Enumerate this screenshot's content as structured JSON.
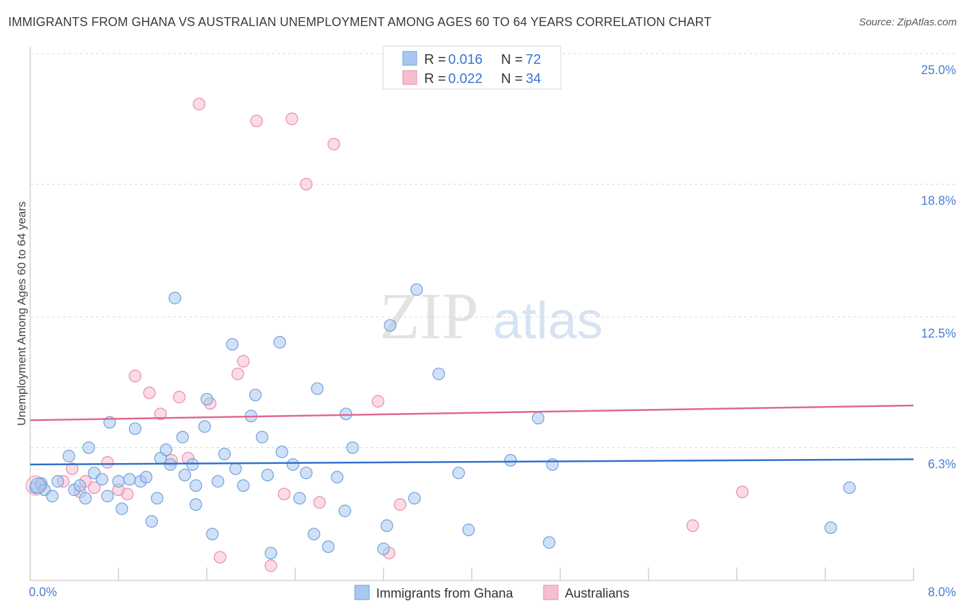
{
  "title": "IMMIGRANTS FROM GHANA VS AUSTRALIAN UNEMPLOYMENT AMONG AGES 60 TO 64 YEARS CORRELATION CHART",
  "source": "Source: ZipAtlas.com",
  "watermark": {
    "zip": "ZIP",
    "atlas": "atlas"
  },
  "colors": {
    "blue_fill": "#a9c8f0",
    "blue_stroke": "#6f9fdc",
    "blue_line": "#2e6fcf",
    "pink_fill": "#f6bfd0",
    "pink_stroke": "#e98aaa",
    "pink_line": "#e06690",
    "grid": "#d9d9d9",
    "tick_label": "#4a7fd0"
  },
  "legend": {
    "rows": [
      {
        "r_label": "R = ",
        "r_value": "0.016",
        "n_label": "N = ",
        "n_value": "72"
      },
      {
        "r_label": "R = ",
        "r_value": "0.022",
        "n_label": "N = ",
        "n_value": "34"
      }
    ]
  },
  "chart_data": {
    "type": "scatter",
    "title": "IMMIGRANTS FROM GHANA VS AUSTRALIAN UNEMPLOYMENT AMONG AGES 60 TO 64 YEARS CORRELATION CHART",
    "xlabel": "",
    "ylabel": "Unemployment Among Ages 60 to 64 years",
    "xlim": [
      0,
      8.0
    ],
    "ylim": [
      0,
      25.0
    ],
    "x_tick_labels": [
      "0.0%",
      "8.0%"
    ],
    "y_ticks": [
      6.3,
      12.5,
      18.8,
      25.0
    ],
    "y_tick_labels": [
      "6.3%",
      "12.5%",
      "18.8%",
      "25.0%"
    ],
    "grid": true,
    "legend_position": "top-center",
    "series": [
      {
        "name": "Immigrants from Ghana",
        "color": "blue",
        "trend": {
          "x": [
            0.0,
            8.0
          ],
          "y": [
            5.5,
            5.75
          ]
        },
        "points": [
          [
            0.05,
            4.4
          ],
          [
            0.1,
            4.6
          ],
          [
            0.13,
            4.3
          ],
          [
            0.2,
            4.0
          ],
          [
            0.25,
            4.7
          ],
          [
            0.35,
            5.9
          ],
          [
            0.4,
            4.3
          ],
          [
            0.45,
            4.5
          ],
          [
            0.5,
            3.9
          ],
          [
            0.53,
            6.3
          ],
          [
            0.58,
            5.1
          ],
          [
            0.65,
            4.8
          ],
          [
            0.7,
            4.0
          ],
          [
            0.72,
            7.5
          ],
          [
            0.8,
            4.7
          ],
          [
            0.83,
            3.4
          ],
          [
            0.9,
            4.8
          ],
          [
            0.95,
            7.2
          ],
          [
            1.0,
            4.7
          ],
          [
            1.05,
            4.9
          ],
          [
            1.1,
            2.8
          ],
          [
            1.15,
            3.9
          ],
          [
            1.18,
            5.8
          ],
          [
            1.23,
            6.2
          ],
          [
            1.27,
            5.5
          ],
          [
            1.31,
            13.4
          ],
          [
            1.38,
            6.8
          ],
          [
            1.4,
            5.0
          ],
          [
            1.47,
            5.5
          ],
          [
            1.5,
            3.6
          ],
          [
            1.5,
            4.5
          ],
          [
            1.58,
            7.3
          ],
          [
            1.6,
            8.6
          ],
          [
            1.65,
            2.2
          ],
          [
            1.7,
            4.7
          ],
          [
            1.76,
            6.0
          ],
          [
            1.83,
            11.2
          ],
          [
            1.86,
            5.3
          ],
          [
            1.93,
            4.5
          ],
          [
            2.0,
            7.8
          ],
          [
            2.04,
            8.8
          ],
          [
            2.1,
            6.8
          ],
          [
            2.15,
            5.0
          ],
          [
            2.18,
            1.3
          ],
          [
            2.26,
            11.3
          ],
          [
            2.28,
            6.1
          ],
          [
            2.38,
            5.5
          ],
          [
            2.44,
            3.9
          ],
          [
            2.5,
            5.1
          ],
          [
            2.57,
            2.2
          ],
          [
            2.6,
            9.1
          ],
          [
            2.7,
            1.6
          ],
          [
            2.78,
            4.9
          ],
          [
            2.85,
            3.3
          ],
          [
            2.86,
            7.9
          ],
          [
            2.92,
            6.3
          ],
          [
            3.2,
            1.5
          ],
          [
            3.23,
            2.6
          ],
          [
            3.26,
            12.1
          ],
          [
            3.48,
            3.9
          ],
          [
            3.5,
            13.8
          ],
          [
            3.7,
            9.8
          ],
          [
            3.88,
            5.1
          ],
          [
            3.97,
            2.4
          ],
          [
            4.35,
            5.7
          ],
          [
            4.6,
            7.7
          ],
          [
            4.7,
            1.8
          ],
          [
            4.73,
            5.5
          ],
          [
            7.25,
            2.5
          ],
          [
            7.42,
            4.4
          ]
        ]
      },
      {
        "name": "Australians",
        "color": "pink",
        "trend": {
          "x": [
            0.0,
            8.0
          ],
          "y": [
            7.6,
            8.3
          ]
        },
        "points": [
          [
            0.1,
            4.5
          ],
          [
            0.3,
            4.7
          ],
          [
            0.38,
            5.3
          ],
          [
            0.45,
            4.2
          ],
          [
            0.5,
            4.7
          ],
          [
            0.58,
            4.4
          ],
          [
            0.7,
            5.6
          ],
          [
            0.8,
            4.3
          ],
          [
            0.88,
            4.1
          ],
          [
            0.95,
            9.7
          ],
          [
            1.08,
            8.9
          ],
          [
            1.18,
            7.9
          ],
          [
            1.28,
            5.7
          ],
          [
            1.35,
            8.7
          ],
          [
            1.43,
            5.8
          ],
          [
            1.53,
            22.6
          ],
          [
            1.63,
            8.4
          ],
          [
            1.72,
            1.1
          ],
          [
            1.88,
            9.8
          ],
          [
            1.93,
            10.4
          ],
          [
            2.05,
            21.8
          ],
          [
            2.18,
            0.7
          ],
          [
            2.3,
            4.1
          ],
          [
            2.37,
            21.9
          ],
          [
            2.5,
            18.8
          ],
          [
            2.62,
            3.7
          ],
          [
            2.75,
            20.7
          ],
          [
            3.15,
            8.5
          ],
          [
            3.25,
            1.3
          ],
          [
            3.35,
            3.6
          ],
          [
            6.0,
            2.6
          ],
          [
            6.45,
            4.2
          ]
        ]
      }
    ]
  },
  "bottom_legend": {
    "series1": "Immigrants from Ghana",
    "series2": "Australians"
  }
}
